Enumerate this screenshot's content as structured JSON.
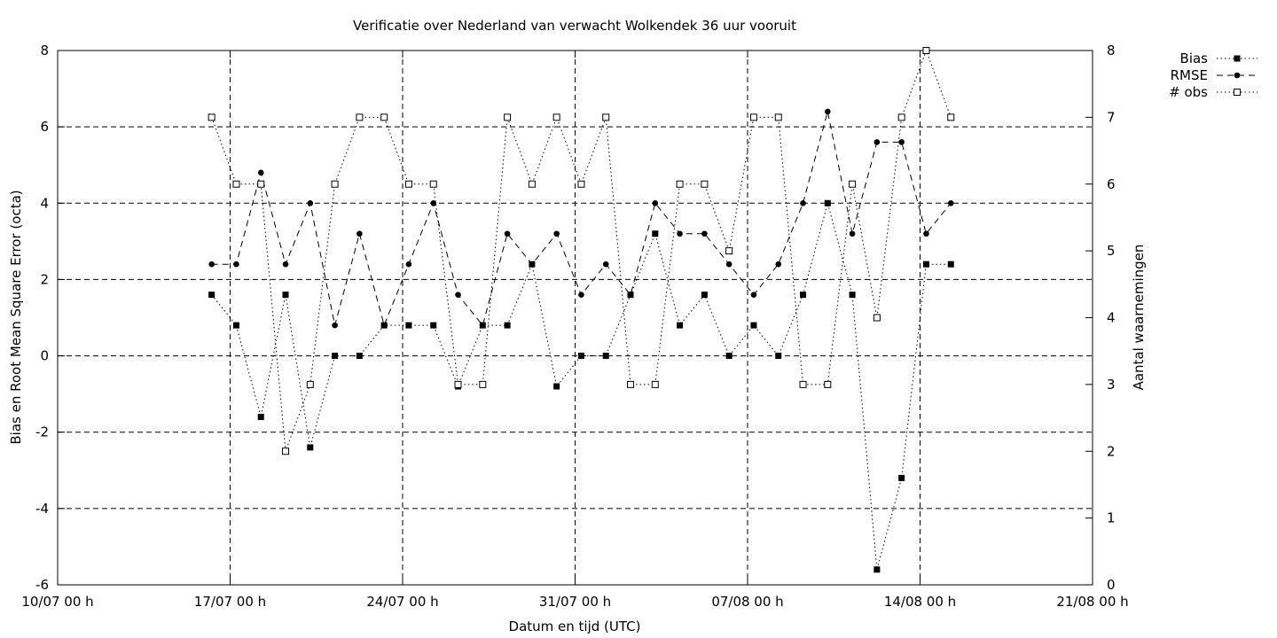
{
  "chart_data": {
    "type": "line",
    "title": "Verificatie over Nederland van verwacht Wolkendek 36 uur vooruit",
    "xlabel": "Datum en tijd (UTC)",
    "ylabel": "Bias en Root Mean Square Error (octa)",
    "y2label": "Aantal waarnemingen",
    "x_ticks": [
      "10/07 00 h",
      "17/07 00 h",
      "24/07 00 h",
      "31/07 00 h",
      "07/08 00 h",
      "14/08 00 h",
      "21/08 00 h"
    ],
    "y_ticks": [
      "8",
      "6",
      "4",
      "2",
      "0",
      "-2",
      "-4",
      "-6"
    ],
    "y2_ticks": [
      "8",
      "7",
      "6",
      "5",
      "4",
      "3",
      "2",
      "1",
      "0"
    ],
    "xlim_days": [
      0,
      42
    ],
    "ylim": [
      -6,
      8
    ],
    "y2lim": [
      0,
      8
    ],
    "grid": true,
    "legend_position": "top-right, outside plot",
    "x": [
      "16/07 06 h",
      "17/07 06 h",
      "18/07 06 h",
      "19/07 06 h",
      "20/07 06 h",
      "21/07 06 h",
      "22/07 06 h",
      "23/07 06 h",
      "24/07 06 h",
      "25/07 06 h",
      "26/07 06 h",
      "27/07 06 h",
      "28/07 06 h",
      "29/07 06 h",
      "30/07 06 h",
      "31/07 06 h",
      "01/08 06 h",
      "02/08 06 h",
      "03/08 06 h",
      "04/08 06 h",
      "05/08 06 h",
      "06/08 06 h",
      "07/08 06 h",
      "08/08 06 h",
      "09/08 06 h",
      "10/08 06 h",
      "11/08 06 h",
      "12/08 06 h",
      "13/08 06 h",
      "14/08 06 h",
      "15/08 06 h"
    ],
    "x_days": [
      6.25,
      7.25,
      8.25,
      9.25,
      10.25,
      11.25,
      12.25,
      13.25,
      14.25,
      15.25,
      16.25,
      17.25,
      18.25,
      19.25,
      20.25,
      21.25,
      22.25,
      23.25,
      24.25,
      25.25,
      26.25,
      27.25,
      28.25,
      29.25,
      30.25,
      31.25,
      32.25,
      33.25,
      34.25,
      35.25,
      36.25
    ],
    "series": [
      {
        "name": "Bias",
        "axis": "left",
        "marker": "filled-square",
        "line": "dotted",
        "values": [
          1.6,
          0.8,
          -1.6,
          1.6,
          -2.4,
          0.0,
          0.0,
          0.8,
          0.8,
          0.8,
          -0.8,
          0.8,
          0.8,
          2.4,
          -0.8,
          0.0,
          0.0,
          1.6,
          3.2,
          0.8,
          1.6,
          0.0,
          0.8,
          0.0,
          1.6,
          4.0,
          1.6,
          -5.6,
          -3.2,
          2.4,
          2.4
        ]
      },
      {
        "name": "RMSE",
        "axis": "left",
        "marker": "filled-circle",
        "line": "dashed",
        "values": [
          2.4,
          2.4,
          4.8,
          2.4,
          4.0,
          0.8,
          3.2,
          0.8,
          2.4,
          4.0,
          1.6,
          0.8,
          3.2,
          2.4,
          3.2,
          1.6,
          2.4,
          1.6,
          4.0,
          3.2,
          3.2,
          2.4,
          1.6,
          2.4,
          4.0,
          6.4,
          3.2,
          5.6,
          5.6,
          3.2,
          4.0
        ]
      },
      {
        "name": "# obs",
        "axis": "right",
        "marker": "open-square",
        "line": "dotted",
        "values": [
          7,
          6,
          6,
          2,
          3,
          6,
          7,
          7,
          6,
          6,
          3,
          3,
          7,
          6,
          7,
          6,
          7,
          3,
          3,
          6,
          6,
          5,
          7,
          7,
          3,
          3,
          6,
          4,
          7,
          8,
          7
        ]
      }
    ]
  }
}
